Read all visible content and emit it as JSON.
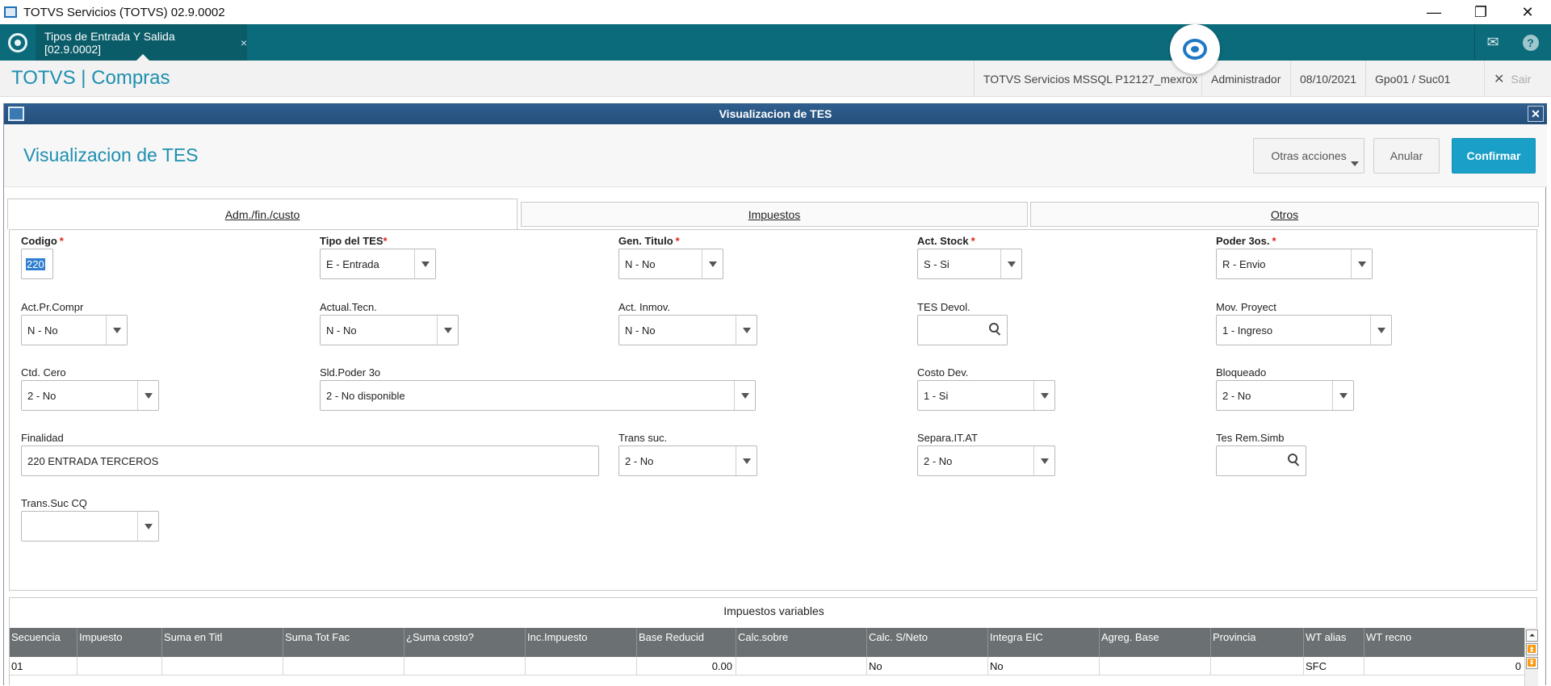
{
  "window": {
    "title": "TOTVS Servicios (TOTVS) 02.9.0002",
    "minimize": "—",
    "restore": "❐",
    "close": "✕"
  },
  "tabbar": {
    "tab_label": "Tipos de Entrada Y Salida [02.9.0002]",
    "tab_close": "×",
    "mail_glyph": "✉",
    "help_glyph": "?"
  },
  "module": {
    "title": "TOTVS | Compras",
    "environment": "TOTVS Servicios MSSQL P12127_mexrox",
    "user": "Administrador",
    "date": "08/10/2021",
    "branch": "Gpo01 / Suc01",
    "exit_glyph": "✕",
    "exit_label": "Sair"
  },
  "dialog": {
    "title": "Visualizacion de TES",
    "close_glyph": "✕",
    "heading": "Visualizacion de TES",
    "buttons": {
      "otras": "Otras acciones",
      "anular": "Anular",
      "confirmar": "Confirmar"
    },
    "tabs": [
      "Adm./fin./custo",
      "Impuestos",
      "Otros"
    ]
  },
  "fields": {
    "codigo": {
      "label": "Codigo",
      "value": "220"
    },
    "tipo_tes": {
      "label": "Tipo del TES",
      "value": "E - Entrada"
    },
    "gen_titulo": {
      "label": "Gen. Titulo",
      "value": "N - No"
    },
    "act_stock": {
      "label": "Act. Stock",
      "value": "S - Si"
    },
    "poder_3os": {
      "label": "Poder 3os.",
      "value": "R - Envio"
    },
    "act_pr_compr": {
      "label": "Act.Pr.Compr",
      "value": "N - No"
    },
    "actual_tecn": {
      "label": "Actual.Tecn.",
      "value": "N - No"
    },
    "act_inmov": {
      "label": "Act. Inmov.",
      "value": "N - No"
    },
    "tes_devol": {
      "label": "TES Devol.",
      "value": ""
    },
    "mov_proyect": {
      "label": "Mov. Proyect",
      "value": "1 - Ingreso"
    },
    "ctd_cero": {
      "label": "Ctd. Cero",
      "value": "2 - No"
    },
    "sld_poder": {
      "label": "Sld.Poder 3o",
      "value": "2 - No disponible"
    },
    "costo_dev": {
      "label": "Costo Dev.",
      "value": "1 - Si"
    },
    "bloqueado": {
      "label": "Bloqueado",
      "value": "2 - No"
    },
    "finalidad": {
      "label": "Finalidad",
      "value": "220 ENTRADA TERCEROS"
    },
    "trans_suc": {
      "label": "Trans suc.",
      "value": "2 - No"
    },
    "separa_itat": {
      "label": "Separa.IT.AT",
      "value": "2 - No"
    },
    "tes_rem_simb": {
      "label": "Tes Rem.Simb",
      "value": ""
    },
    "trans_suc_cq": {
      "label": "Trans.Suc CQ",
      "value": ""
    }
  },
  "impuestos": {
    "title": "Impuestos variables",
    "columns": [
      "Secuencia",
      "Impuesto",
      "Suma en Titl",
      "Suma Tot Fac",
      "¿Suma costo?",
      "Inc.Impuesto",
      "Base Reducid",
      "Calc.sobre",
      "Calc. S/Neto",
      "Integra EIC",
      "Agreg. Base",
      "Provincia",
      "WT alias",
      "WT recno"
    ],
    "rows": [
      [
        "01",
        "",
        "",
        "",
        "",
        "",
        "0.00",
        "",
        "No",
        "No",
        "",
        "",
        "SFC",
        "0"
      ]
    ],
    "scroll_glyphs": [
      "⏶",
      "⏫",
      "⏬"
    ]
  }
}
